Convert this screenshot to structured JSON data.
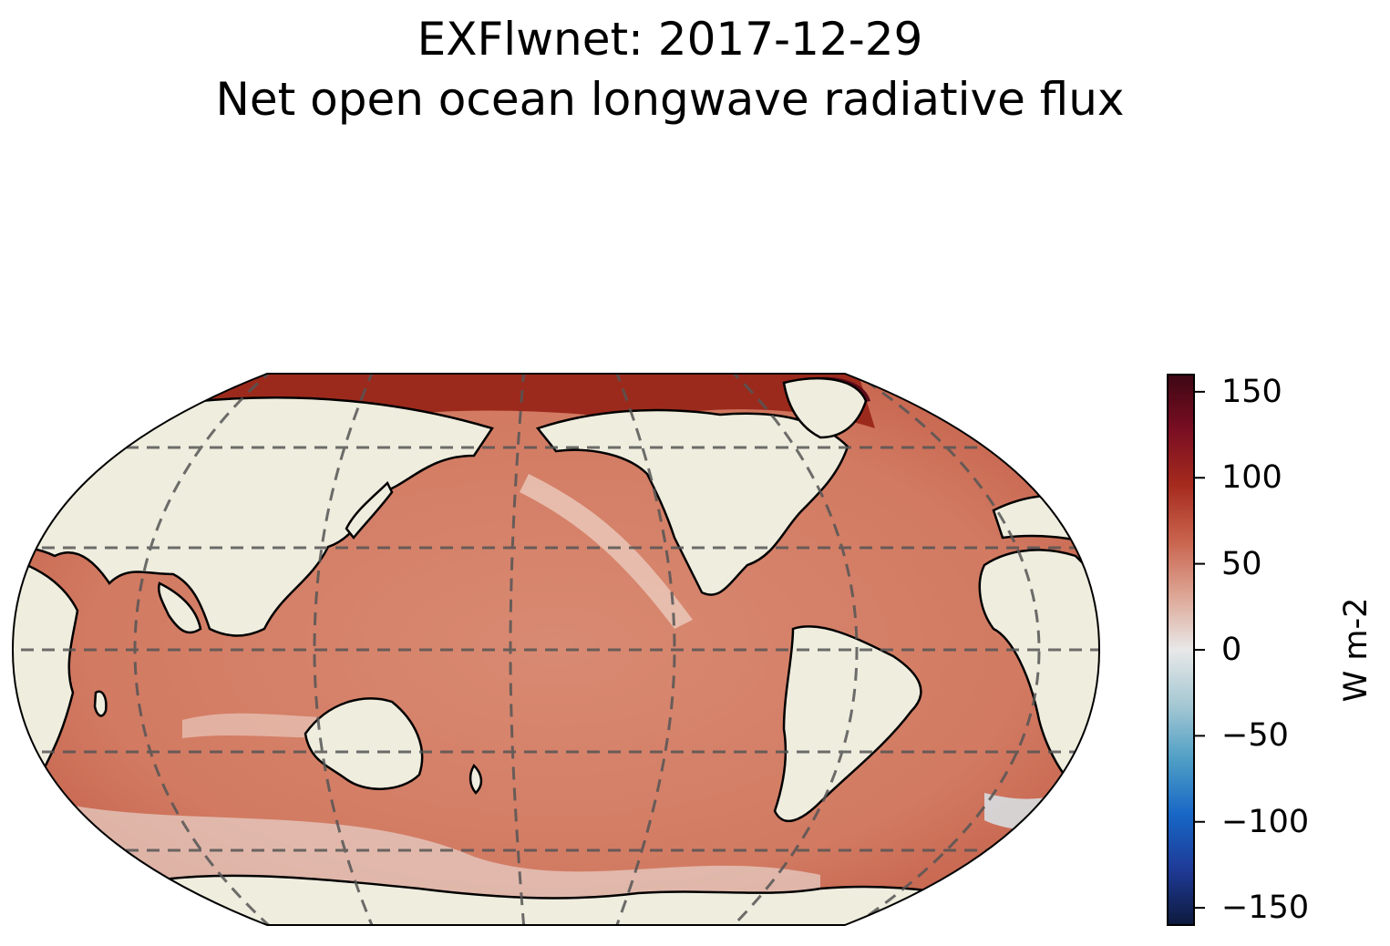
{
  "title": "EXFlwnet: 2017-12-29",
  "subtitle": "Net open ocean longwave radiative flux",
  "map": {
    "projection": "Robinson",
    "central_longitude": 180,
    "gridlines": "dashed",
    "land_color": "#efedde",
    "coastline_color": "#000000"
  },
  "colorbar": {
    "label": "W m-2",
    "vmin": -160,
    "vmax": 160,
    "ticks": [
      "150",
      "100",
      "50",
      "0",
      "−50",
      "−100",
      "−150"
    ],
    "colormap": [
      "#0d1a3d",
      "#1f3a96",
      "#1766c6",
      "#4e9ec5",
      "#a5c8d3",
      "#e8e8e8",
      "#dda594",
      "#c8624c",
      "#a52a1e",
      "#7a0e22",
      "#3d0714"
    ]
  }
}
